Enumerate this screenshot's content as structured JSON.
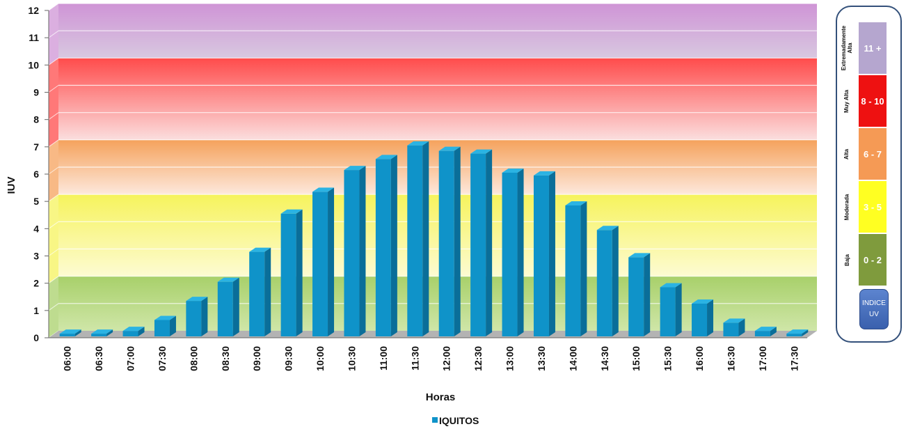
{
  "chart_data": {
    "type": "bar",
    "xlabel": "Horas",
    "ylabel": "IUV",
    "ylim": [
      0,
      12
    ],
    "yticks": [
      0,
      1,
      2,
      3,
      4,
      5,
      6,
      7,
      8,
      9,
      10,
      11,
      12
    ],
    "grid": true,
    "legend": "bottom-center",
    "categories": [
      "06:00",
      "06:30",
      "07:00",
      "07:30",
      "08:00",
      "08:30",
      "09:00",
      "09:30",
      "10:00",
      "10:30",
      "11:00",
      "11:30",
      "12:00",
      "12:30",
      "13:00",
      "13:30",
      "14:00",
      "14:30",
      "15:00",
      "15:30",
      "16:00",
      "16:30",
      "17:00",
      "17:30"
    ],
    "series": [
      {
        "name": "IQUITOS",
        "color": "#0f93c9",
        "values": [
          0.1,
          0.1,
          0.2,
          0.6,
          1.3,
          2.0,
          3.1,
          4.5,
          5.3,
          6.1,
          6.5,
          7.0,
          6.8,
          6.7,
          6.0,
          5.9,
          4.8,
          3.9,
          2.9,
          1.8,
          1.2,
          0.5,
          0.2,
          0.1
        ]
      }
    ],
    "bands": [
      {
        "from": 0,
        "to": 2,
        "top": "#a8d06a",
        "bottom": "#cfe6a8"
      },
      {
        "from": 2,
        "to": 5,
        "top": "#f6f35c",
        "bottom": "#fdfbd2"
      },
      {
        "from": 5,
        "to": 7,
        "top": "#f5a25c",
        "bottom": "#fde8dc"
      },
      {
        "from": 7,
        "to": 10,
        "top": "#ff4b4b",
        "bottom": "#fbdede"
      },
      {
        "from": 10,
        "to": 12,
        "top": "#cf94d6",
        "bottom": "#d8c8e0"
      }
    ]
  },
  "uv_scale": [
    {
      "category": "Extremadamente Alta",
      "range": "11 +",
      "color": "#b5a6cf"
    },
    {
      "category": "Muy Alta",
      "range": "8 - 10",
      "color": "#ee1111"
    },
    {
      "category": "Alta",
      "range": "6 - 7",
      "color": "#f59a55"
    },
    {
      "category": "Moderada",
      "range": "3 - 5",
      "color": "#ffff22"
    },
    {
      "category": "Baja",
      "range": "0 - 2",
      "color": "#7f9b3d"
    }
  ],
  "uv_index_button": "INDICE\nUV"
}
